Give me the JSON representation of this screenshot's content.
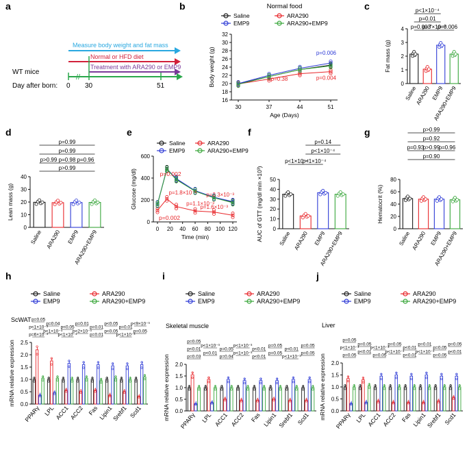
{
  "colors": {
    "saline": "#1a1a1a",
    "ara290": "#e8262a",
    "emp9": "#2d3ad6",
    "combo": "#38a63a",
    "measure": "#29a8e0",
    "normal": "#d1203a",
    "treat": "#7a3a99",
    "timeline": "#2aa74b"
  },
  "panel_letters": [
    "a",
    "b",
    "c",
    "d",
    "e",
    "f",
    "g",
    "h",
    "i",
    "j"
  ],
  "legend_labels": [
    "Saline",
    "ARA290",
    "EMP9",
    "ARA290+EMP9"
  ],
  "groups": [
    "Saline",
    "ARA290",
    "EMP9",
    "ARA290+EMP9"
  ],
  "schematic": {
    "bars": [
      "Measure body weight and fat mass",
      "Normal or HFD diet",
      "Treatment with ARA290 or EMP9"
    ],
    "subject": "WT mice",
    "day_label": "Day after born:",
    "ticks": [
      "0",
      "30",
      "51"
    ]
  },
  "chart_data": [
    {
      "id": "b",
      "type": "line",
      "title": "Normal food",
      "xlabel": "Age (Days)",
      "ylabel": "Body weight (g)",
      "x": [
        30,
        37,
        44,
        51
      ],
      "ylim": [
        16,
        32
      ],
      "yticks": [
        16,
        18,
        20,
        22,
        24,
        26,
        28,
        30,
        32
      ],
      "series": [
        {
          "name": "Saline",
          "values": [
            19.9,
            21.7,
            23.4,
            24.5
          ]
        },
        {
          "name": "ARA290",
          "values": [
            19.9,
            21.1,
            22.4,
            22.9
          ]
        },
        {
          "name": "EMP9",
          "values": [
            20.0,
            22.0,
            23.7,
            25.0
          ]
        },
        {
          "name": "ARA290+EMP9",
          "values": [
            19.8,
            21.7,
            23.4,
            24.3
          ]
        }
      ],
      "annotations": [
        "p=0.006",
        "p=0.38",
        "p=0.004"
      ]
    },
    {
      "id": "c",
      "type": "bar",
      "ylabel": "Fat mass (g)",
      "ylim": [
        0,
        4
      ],
      "yticks": [
        0,
        1,
        2,
        3,
        4
      ],
      "categories": [
        "Saline",
        "ARA290",
        "EMP9",
        "ARA290+EMP9"
      ],
      "values": [
        2.15,
        1.05,
        2.8,
        2.15
      ],
      "annotations": [
        "p<1×10⁻⁴",
        "p=0.01",
        "p=0.003",
        "p=7×10⁻³",
        "p=0.006"
      ]
    },
    {
      "id": "d",
      "type": "bar",
      "ylabel": "Lean mass (g)",
      "ylim": [
        0,
        40
      ],
      "yticks": [
        0,
        10,
        20,
        30,
        40
      ],
      "categories": [
        "Saline",
        "ARA290",
        "EMP9",
        "ARA290+EMP9"
      ],
      "values": [
        19.8,
        19.5,
        19.6,
        19.7
      ],
      "annotations": [
        "p=0.99",
        "p=0.99",
        "p>0.99",
        "p=0.98",
        "p=0.96",
        "p>0.99"
      ]
    },
    {
      "id": "e",
      "type": "line",
      "xlabel": "Time (min)",
      "ylabel": "Glucose (mg/dl)",
      "x": [
        0,
        15,
        30,
        60,
        90,
        120
      ],
      "ylim": [
        0,
        600
      ],
      "yticks": [
        0,
        200,
        400,
        600
      ],
      "xticks": [
        0,
        20,
        40,
        60,
        80,
        100,
        120
      ],
      "series": [
        {
          "name": "Saline",
          "values": [
            160,
            485,
            390,
            280,
            220,
            180
          ]
        },
        {
          "name": "ARA290",
          "values": [
            105,
            210,
            140,
            100,
            90,
            60
          ]
        },
        {
          "name": "EMP9",
          "values": [
            165,
            480,
            395,
            285,
            225,
            185
          ]
        },
        {
          "name": "ARA290+EMP9",
          "values": [
            160,
            480,
            385,
            280,
            220,
            175
          ]
        }
      ],
      "annotations": [
        "p=0.002",
        "p=1.8×10⁻³",
        "p=1.1×10⁻³",
        "p=1.6×10⁻³",
        "p=2.3×10⁻³",
        "p=0.002"
      ]
    },
    {
      "id": "f",
      "type": "bar",
      "ylabel": "AUC of GTT (mg/dl min ×10³)",
      "ylim": [
        0,
        50
      ],
      "yticks": [
        0,
        10,
        20,
        30,
        40,
        50
      ],
      "categories": [
        "Saline",
        "ARA290",
        "EMP9",
        "ARA290+EMP9"
      ],
      "values": [
        35,
        13,
        36.5,
        35
      ],
      "annotations": [
        "p=0.14",
        "p<1×10⁻⁴",
        "p<1×10⁻⁴",
        "p<1×10⁻⁴"
      ]
    },
    {
      "id": "g",
      "type": "bar",
      "ylabel": "Hematocrit (%)",
      "ylim": [
        0,
        80
      ],
      "yticks": [
        0,
        20,
        40,
        60,
        80
      ],
      "categories": [
        "Saline",
        "ARA290",
        "EMP9",
        "ARA290+EMP9"
      ],
      "values": [
        49,
        48,
        48,
        47
      ],
      "annotations": [
        "p>0.99",
        "p=0.92",
        "p=0.93",
        "p>0.99",
        "p=0.96",
        "p=0.90"
      ]
    },
    {
      "id": "h",
      "type": "bar",
      "title": "ScWAT",
      "ylabel": "mRNA relative expression",
      "ylim": [
        0,
        2.5
      ],
      "yticks": [
        0,
        0.5,
        1.0,
        1.5,
        2.0,
        2.5
      ],
      "categories": [
        "PPARγ",
        "LPL",
        "ACC1",
        "ACC2",
        "Fas",
        "Lipin1",
        "Srebf1",
        "Scd1"
      ],
      "series": [
        {
          "name": "Saline",
          "values": [
            1.0,
            1.0,
            1.0,
            1.0,
            1.0,
            1.0,
            1.0,
            1.0
          ]
        },
        {
          "name": "ARA290",
          "values": [
            2.2,
            1.75,
            0.55,
            0.5,
            0.55,
            0.35,
            0.5,
            0.3
          ]
        },
        {
          "name": "EMP9",
          "values": [
            0.35,
            0.45,
            1.65,
            1.6,
            1.6,
            1.55,
            1.55,
            1.6
          ]
        },
        {
          "name": "ARA290+EMP9",
          "values": [
            1.05,
            1.05,
            1.0,
            1.05,
            0.95,
            1.05,
            1.0,
            1.1
          ]
        }
      ],
      "annotations": [
        "p=6×10⁻³",
        "p<1×10⁻⁴",
        "p<1×10⁻⁴",
        "p<2×10⁻³",
        "p=0.01",
        "p<0.05",
        "p<1×10⁻³",
        "p=0.05",
        "p<1×10⁻³",
        "p=0.04",
        "p<0.05",
        "p=0.01",
        "p=0.01",
        "p<0.05",
        "p=0.01",
        "p<9×10⁻³",
        "p=0.05"
      ]
    },
    {
      "id": "i",
      "type": "bar",
      "title": "Skeletal muscle",
      "ylabel": "mRNA relative expression",
      "ylim": [
        0,
        2.0
      ],
      "yticks": [
        0,
        0.5,
        1.0,
        1.5,
        2.0
      ],
      "categories": [
        "PPARγ",
        "LPL",
        "ACC1",
        "ACC2",
        "Fas",
        "Lipin1",
        "Srebf1",
        "Scd1"
      ],
      "series": [
        {
          "name": "Saline",
          "values": [
            1.0,
            1.0,
            1.0,
            1.0,
            1.0,
            1.0,
            1.0,
            1.0
          ]
        },
        {
          "name": "ARA290",
          "values": [
            1.55,
            1.35,
            0.5,
            0.45,
            0.45,
            0.5,
            0.45,
            0.45
          ]
        },
        {
          "name": "EMP9",
          "values": [
            0.3,
            0.35,
            1.35,
            1.3,
            1.3,
            1.3,
            1.35,
            1.35
          ]
        },
        {
          "name": "ARA290+EMP9",
          "values": [
            1.0,
            1.0,
            1.0,
            1.0,
            1.0,
            1.0,
            1.0,
            1.0
          ]
        }
      ],
      "annotations": [
        "p=0.03",
        "p<0.01",
        "p=0.04",
        "p<1×10⁻³",
        "p<0.01",
        "p=0.05",
        "p<1×10⁻³",
        "p=0.05",
        "p<0.01",
        "p<1×10⁻³",
        "p=0.05",
        "p<1×10⁻³",
        "p<0.01",
        "p=0.05",
        "p<0.01",
        "p=0.05",
        "p=0.05"
      ]
    },
    {
      "id": "j",
      "type": "bar",
      "title": "Liver",
      "ylabel": "mRNA relative expression",
      "ylim": [
        0,
        2.0
      ],
      "yticks": [
        0,
        0.5,
        1.0,
        1.5,
        2.0
      ],
      "categories": [
        "PPARγ",
        "LPL",
        "ACC1",
        "ACC2",
        "Fas",
        "Lipin1",
        "Srebf1",
        "Scd1"
      ],
      "series": [
        {
          "name": "Saline",
          "values": [
            1.0,
            1.0,
            1.0,
            1.0,
            1.0,
            1.0,
            1.0,
            1.0
          ]
        },
        {
          "name": "ARA290",
          "values": [
            1.35,
            1.3,
            0.4,
            0.35,
            0.35,
            0.35,
            0.4,
            0.55
          ]
        },
        {
          "name": "EMP9",
          "values": [
            0.3,
            0.35,
            1.45,
            1.5,
            1.45,
            1.5,
            1.45,
            1.45
          ]
        },
        {
          "name": "ARA290+EMP9",
          "values": [
            1.0,
            1.05,
            1.0,
            1.0,
            1.0,
            1.0,
            1.0,
            1.0
          ]
        }
      ],
      "annotations": [
        "p=0.05",
        "p<0.01",
        "p=0.05",
        "p<1×10⁻³",
        "p<0.01",
        "p<1×10⁻³",
        "p=0.05",
        "p<0.01",
        "p<1×10⁻³",
        "p=0.05",
        "p<1×10⁻³",
        "p=0.05",
        "p<0.01",
        "p=0.01",
        "p=0.05",
        "p=0.05",
        "p=0.05"
      ]
    }
  ]
}
